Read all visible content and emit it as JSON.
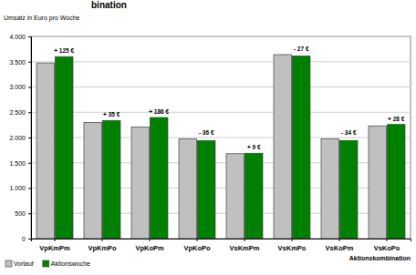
{
  "chart_data": {
    "type": "bar",
    "title": "bination",
    "y_label": "Umsatz in Euro pro Woche",
    "x_label": "Aktionskombination",
    "categories": [
      "VpKmPm",
      "VpKmPo",
      "VpKoPm",
      "VpKoPo",
      "VsKmPm",
      "VsKmPo",
      "VsKoPm",
      "VsKoPo"
    ],
    "series": [
      {
        "name": "Vorlauf",
        "color": "#c0c0c0",
        "values": [
          3475,
          2300,
          2210,
          1975,
          1680,
          3640,
          1975,
          2230
        ]
      },
      {
        "name": "Aktionswoche",
        "color": "#008000",
        "values": [
          3600,
          2335,
          2396,
          1939,
          1689,
          3613,
          1941,
          2258
        ]
      }
    ],
    "annotations": [
      "+ 125 €",
      "+ 35 €",
      "+ 186 €",
      "- 36 €",
      "+ 9 €",
      "- 27 €",
      "- 34 €",
      "+ 28 €"
    ],
    "ylim": [
      0,
      4000
    ],
    "yticks": [
      0,
      500,
      {
        "value": 1000,
        "label": "1.000"
      },
      {
        "value": 1500,
        "label": "1.500"
      },
      {
        "value": 2000,
        "label": "2.000"
      },
      {
        "value": 2500,
        "label": "2.500"
      },
      {
        "value": 3000,
        "label": "3.000"
      },
      {
        "value": 3500,
        "label": "3.500"
      },
      {
        "value": 4000,
        "label": "4.000"
      }
    ],
    "grid": true,
    "legend": "bottom-left"
  }
}
